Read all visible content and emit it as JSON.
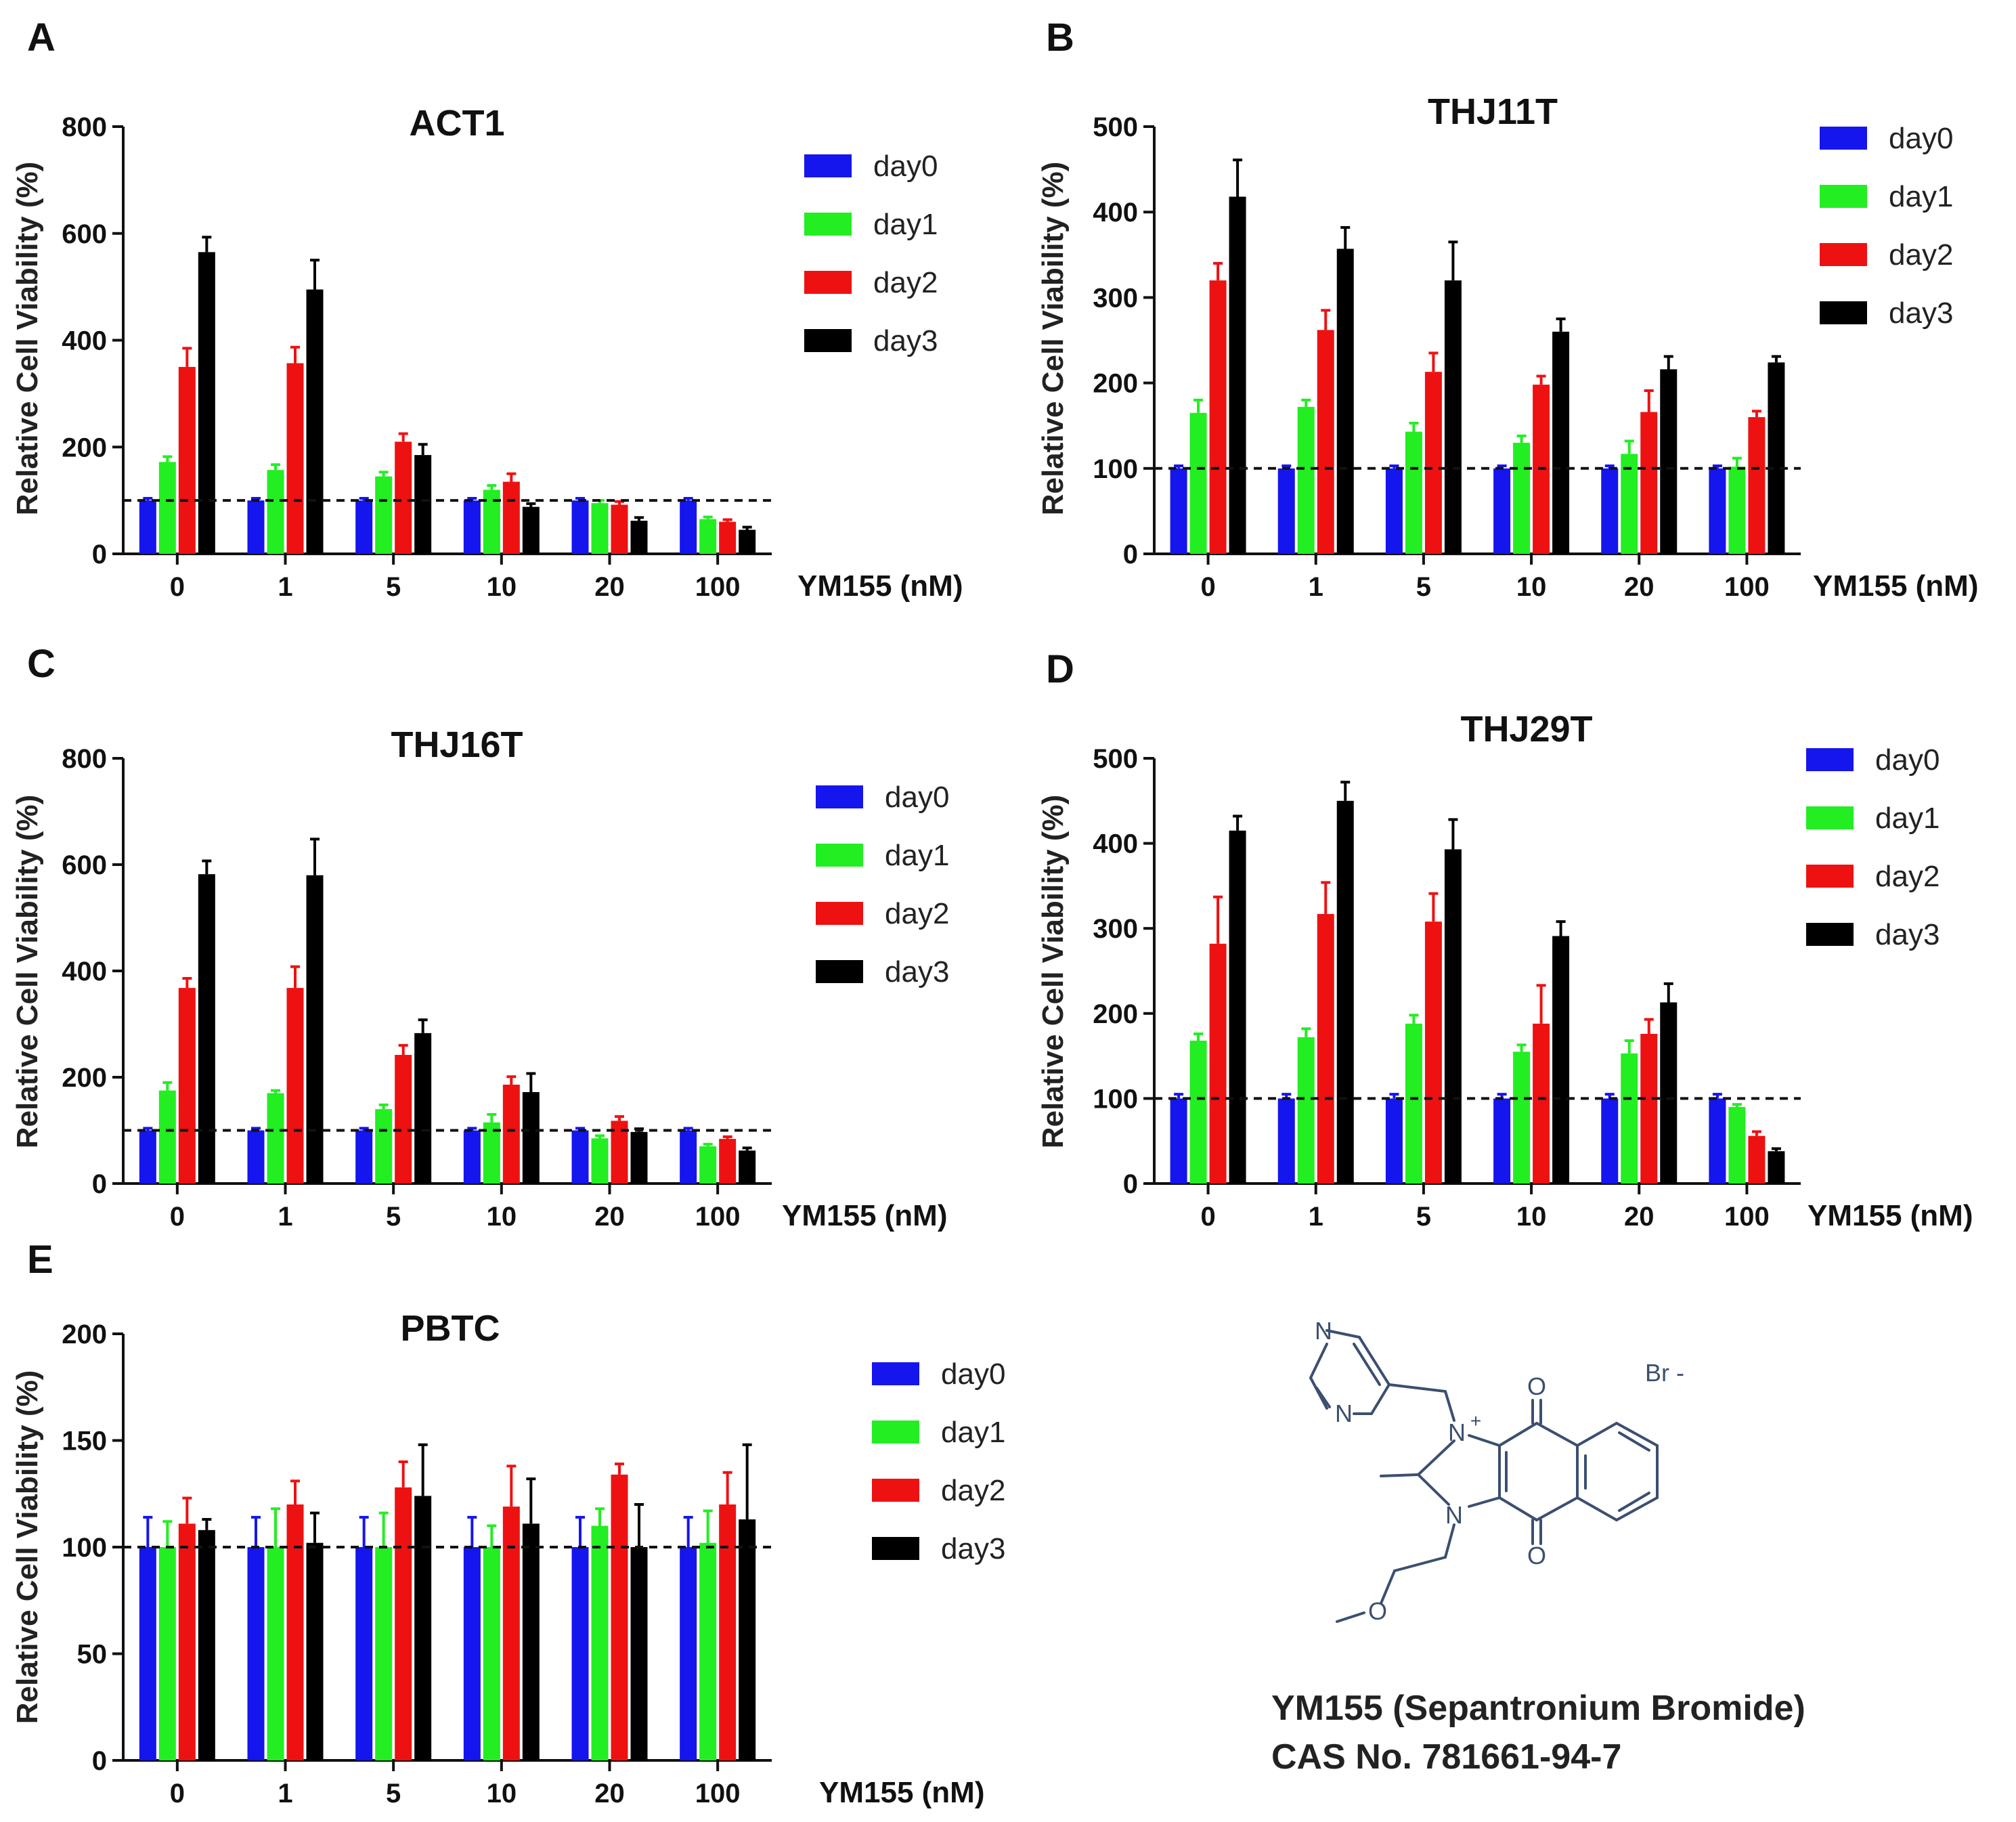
{
  "colors": {
    "day0": "#1515ee",
    "day1": "#22ee22",
    "day2": "#ee1111",
    "day3": "#000000"
  },
  "x_unit_label": "YM155 (nM)",
  "y_axis_label": "Relative Cell Viability (%)",
  "chart_data": [
    {
      "panel": "A",
      "type": "bar",
      "title": "ACT1",
      "xlabel": "YM155 (nM)",
      "ylabel": "Relative Cell Viability (%)",
      "categories": [
        "0",
        "1",
        "5",
        "10",
        "20",
        "100"
      ],
      "ylim": [
        0,
        800
      ],
      "yticks": [
        "0",
        "200",
        "400",
        "600",
        "800"
      ],
      "reference_line": 100,
      "legend": [
        "day0",
        "day1",
        "day2",
        "day3"
      ],
      "series": [
        {
          "name": "day0",
          "values": [
            100,
            100,
            100,
            100,
            100,
            100
          ],
          "errors": [
            4,
            4,
            4,
            4,
            4,
            4
          ]
        },
        {
          "name": "day1",
          "values": [
            172,
            157,
            145,
            120,
            95,
            65
          ],
          "errors": [
            10,
            10,
            8,
            8,
            5,
            4
          ]
        },
        {
          "name": "day2",
          "values": [
            350,
            357,
            210,
            135,
            92,
            60
          ],
          "errors": [
            35,
            30,
            15,
            15,
            6,
            4
          ]
        },
        {
          "name": "day3",
          "values": [
            565,
            495,
            185,
            88,
            62,
            45
          ],
          "errors": [
            28,
            55,
            20,
            6,
            6,
            5
          ]
        }
      ]
    },
    {
      "panel": "B",
      "type": "bar",
      "title": "THJ11T",
      "xlabel": "YM155 (nM)",
      "ylabel": "Relative Cell Viability (%)",
      "categories": [
        "0",
        "1",
        "5",
        "10",
        "20",
        "100"
      ],
      "ylim": [
        0,
        500
      ],
      "yticks": [
        "0",
        "100",
        "200",
        "300",
        "400",
        "500"
      ],
      "reference_line": 100,
      "legend": [
        "day0",
        "day1",
        "day2",
        "day3"
      ],
      "series": [
        {
          "name": "day0",
          "values": [
            100,
            100,
            100,
            100,
            100,
            100
          ],
          "errors": [
            3,
            3,
            3,
            3,
            3,
            3
          ]
        },
        {
          "name": "day1",
          "values": [
            165,
            172,
            143,
            130,
            117,
            102
          ],
          "errors": [
            15,
            8,
            10,
            8,
            15,
            10
          ]
        },
        {
          "name": "day2",
          "values": [
            320,
            262,
            213,
            198,
            166,
            160
          ],
          "errors": [
            20,
            23,
            22,
            10,
            25,
            7
          ]
        },
        {
          "name": "day3",
          "values": [
            418,
            357,
            320,
            260,
            216,
            224
          ],
          "errors": [
            43,
            25,
            45,
            15,
            15,
            7
          ]
        }
      ]
    },
    {
      "panel": "C",
      "type": "bar",
      "title": "THJ16T",
      "xlabel": "YM155 (nM)",
      "ylabel": "Relative Cell Viability (%)",
      "categories": [
        "0",
        "1",
        "5",
        "10",
        "20",
        "100"
      ],
      "ylim": [
        0,
        800
      ],
      "yticks": [
        "0",
        "200",
        "400",
        "600",
        "800"
      ],
      "reference_line": 100,
      "legend": [
        "day0",
        "day1",
        "day2",
        "day3"
      ],
      "series": [
        {
          "name": "day0",
          "values": [
            100,
            100,
            100,
            100,
            100,
            100
          ],
          "errors": [
            4,
            4,
            4,
            4,
            4,
            4
          ]
        },
        {
          "name": "day1",
          "values": [
            175,
            170,
            140,
            115,
            85,
            70
          ],
          "errors": [
            15,
            5,
            8,
            15,
            5,
            4
          ]
        },
        {
          "name": "day2",
          "values": [
            368,
            368,
            242,
            186,
            118,
            84
          ],
          "errors": [
            18,
            40,
            18,
            15,
            8,
            4
          ]
        },
        {
          "name": "day3",
          "values": [
            582,
            580,
            283,
            172,
            97,
            62
          ],
          "errors": [
            25,
            68,
            25,
            35,
            6,
            5
          ]
        }
      ]
    },
    {
      "panel": "D",
      "type": "bar",
      "title": "THJ29T",
      "xlabel": "YM155 (nM)",
      "ylabel": "Relative Cell Viability (%)",
      "categories": [
        "0",
        "1",
        "5",
        "10",
        "20",
        "100"
      ],
      "ylim": [
        0,
        500
      ],
      "yticks": [
        "0",
        "100",
        "200",
        "300",
        "400",
        "500"
      ],
      "reference_line": 100,
      "legend": [
        "day0",
        "day1",
        "day2",
        "day3"
      ],
      "series": [
        {
          "name": "day0",
          "values": [
            100,
            100,
            100,
            100,
            100,
            100
          ],
          "errors": [
            5,
            5,
            5,
            5,
            5,
            5
          ]
        },
        {
          "name": "day1",
          "values": [
            168,
            172,
            188,
            155,
            153,
            90
          ],
          "errors": [
            8,
            10,
            10,
            8,
            15,
            3
          ]
        },
        {
          "name": "day2",
          "values": [
            282,
            317,
            308,
            188,
            176,
            56
          ],
          "errors": [
            55,
            37,
            33,
            45,
            17,
            5
          ]
        },
        {
          "name": "day3",
          "values": [
            415,
            450,
            393,
            291,
            213,
            38
          ],
          "errors": [
            17,
            22,
            35,
            17,
            22,
            3
          ]
        }
      ]
    },
    {
      "panel": "E",
      "type": "bar",
      "title": "PBTC",
      "xlabel": "YM155 (nM)",
      "ylabel": "Relative Cell Viability (%)",
      "categories": [
        "0",
        "1",
        "5",
        "10",
        "20",
        "100"
      ],
      "ylim": [
        0,
        200
      ],
      "yticks": [
        "0",
        "50",
        "100",
        "150",
        "200"
      ],
      "reference_line": 100,
      "legend": [
        "day0",
        "day1",
        "day2",
        "day3"
      ],
      "series": [
        {
          "name": "day0",
          "values": [
            100,
            100,
            100,
            100,
            100,
            100
          ],
          "errors": [
            14,
            14,
            14,
            14,
            14,
            14
          ]
        },
        {
          "name": "day1",
          "values": [
            100,
            100,
            100,
            100,
            110,
            102
          ],
          "errors": [
            12,
            18,
            16,
            10,
            8,
            15
          ]
        },
        {
          "name": "day2",
          "values": [
            111,
            120,
            128,
            119,
            134,
            120
          ],
          "errors": [
            12,
            11,
            12,
            19,
            5,
            15
          ]
        },
        {
          "name": "day3",
          "values": [
            108,
            102,
            124,
            111,
            100,
            113
          ],
          "errors": [
            5,
            14,
            24,
            21,
            20,
            35
          ]
        }
      ]
    }
  ],
  "molecule": {
    "atom_labels": {
      "n_top": "N",
      "n_bottom": "N",
      "n_plus": "N",
      "n_lower": "N",
      "o_top": "O",
      "o_bottom": "O",
      "o_methoxy": "O",
      "plus": "+",
      "bromide": "Br -"
    },
    "caption_line1": "YM155 (Sepantronium Bromide)",
    "caption_line2": "CAS No. 781661-94-7"
  }
}
